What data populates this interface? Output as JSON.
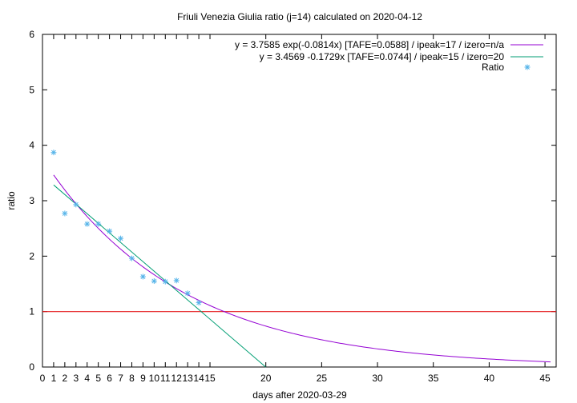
{
  "chart_data": {
    "type": "scatter",
    "title": "Friuli Venezia Giulia ratio (j=14) calculated on 2020-04-12",
    "xlabel": "days after 2020-03-29",
    "ylabel": "ratio",
    "xlim": [
      0,
      46
    ],
    "ylim": [
      0,
      6
    ],
    "x_ticks": [
      0,
      1,
      2,
      3,
      4,
      5,
      6,
      7,
      8,
      9,
      10,
      11,
      12,
      13,
      14,
      15,
      20,
      25,
      30,
      35,
      40,
      45
    ],
    "y_ticks": [
      0,
      1,
      2,
      3,
      4,
      5,
      6
    ],
    "grid": false,
    "legend_position": "top-right",
    "series": [
      {
        "name": "y = 3.7585 exp(-0.0814x)  [TAFE=0.0588] / ipeak=17 / izero=n/a",
        "kind": "curve",
        "color": "#9400d3",
        "formula": "exp",
        "a": 3.7585,
        "b": -0.0814,
        "x_range": [
          1,
          45.5
        ]
      },
      {
        "name": "y = 3.4569 -0.1729x  [TAFE=0.0744] / ipeak=15 / izero=20",
        "kind": "line",
        "color": "#009e73",
        "formula": "linear",
        "a": 3.4569,
        "b": -0.1729,
        "x_range": [
          1,
          19.99
        ]
      },
      {
        "name": "Ratio",
        "kind": "points",
        "color": "#56b4e9",
        "x": [
          1,
          2,
          3,
          4,
          5,
          6,
          7,
          8,
          9,
          10,
          11,
          12,
          13,
          14
        ],
        "y": [
          3.87,
          2.77,
          2.93,
          2.58,
          2.58,
          2.45,
          2.32,
          1.96,
          1.63,
          1.55,
          1.54,
          1.56,
          1.33,
          1.16
        ]
      }
    ],
    "reference_line": {
      "y": 1,
      "color": "#e41a1c"
    }
  }
}
